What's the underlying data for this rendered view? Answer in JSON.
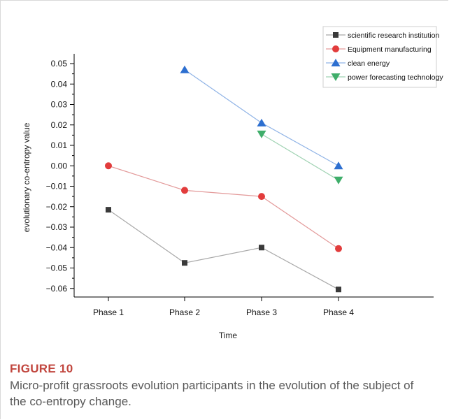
{
  "figure": {
    "label": "FIGURE 10",
    "caption": "Micro-profit grassroots evolution participants in the evolution of the subject of the co-entropy change."
  },
  "chart_data": {
    "type": "line",
    "xlabel": "Time",
    "ylabel": "evolutionary co-entropy value",
    "categories": [
      "Phase 1",
      "Phase 2",
      "Phase 3",
      "Phase 4"
    ],
    "yticks": [
      "0.05",
      "0.04",
      "0.03",
      "0.02",
      "0.01",
      "0.00",
      "−0.01",
      "−0.02",
      "−0.03",
      "−0.04",
      "−0.05",
      "−0.06"
    ],
    "ylim": [
      -0.065,
      0.055
    ],
    "legend_position": "top-right",
    "grid": false,
    "series": [
      {
        "name": "scientific research institution",
        "marker": "square",
        "color": "#3a3a3a",
        "line_color": "#a9a9a9",
        "values": [
          -0.0215,
          -0.0475,
          -0.04,
          -0.0605
        ]
      },
      {
        "name": "Equipment manufacturing",
        "marker": "circle",
        "color": "#e23c3c",
        "line_color": "#e39a9a",
        "values": [
          0.0,
          -0.012,
          -0.015,
          -0.0405
        ]
      },
      {
        "name": "clean energy",
        "marker": "triangle-up",
        "color": "#2d6fd0",
        "line_color": "#8fb3e6",
        "values": [
          null,
          0.047,
          0.021,
          0.0
        ]
      },
      {
        "name": "power forecasting technology",
        "marker": "triangle-down",
        "color": "#3fae6a",
        "line_color": "#9fd2b2",
        "values": [
          null,
          null,
          0.0155,
          -0.007
        ]
      }
    ]
  }
}
